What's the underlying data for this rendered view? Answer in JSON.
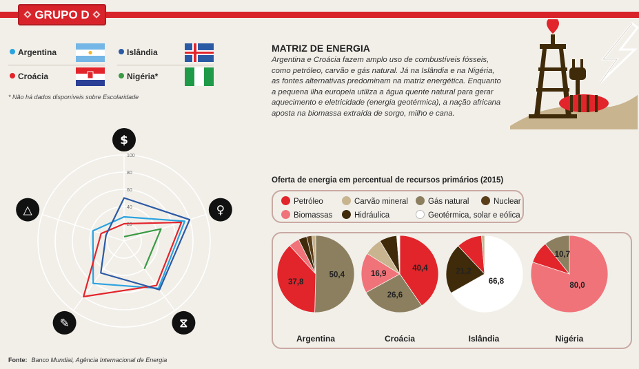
{
  "header": {
    "group": "GRUPO D"
  },
  "countries": [
    {
      "name": "Argentina",
      "color": "#2aa3df"
    },
    {
      "name": "Croácia",
      "color": "#e2242b"
    },
    {
      "name": "Islândia",
      "color": "#2b5aa5"
    },
    {
      "name": "Nigéria*",
      "color": "#3a9a45"
    }
  ],
  "note": "* Não há dados disponíveis sobre Escolaridade",
  "matrix": {
    "title": "MATRIZ DE ENERGIA",
    "text": "Argentina e Croácia fazem amplo uso de combustíveis fósseis, como petróleo, carvão e gás natural. Já na Islândia e na Nigéria, as fontes alternativas predominam na matriz energética. Enquanto a pequena ilha europeia utiliza a água quente natural para gerar aquecimento e eletricidade (energia geotérmica), a nação africana aposta na biomassa extraída de sorgo, milho e cana."
  },
  "source": {
    "label": "Fonte:",
    "text": "Banco Mundial, Agência Internacional de Energia"
  },
  "chart_data": [
    {
      "type": "radar",
      "axis_icons": [
        "dollar-icon",
        "person-icon",
        "hourglass-icon",
        "pencil-icon",
        "pyramid-icon"
      ],
      "ticks": [
        "20",
        "40",
        "60",
        "80",
        "100"
      ],
      "rlim": [
        0,
        100
      ],
      "series": [
        {
          "color": "#2aa3df",
          "values": [
            28,
            74,
            68,
            61,
            38
          ]
        },
        {
          "color": "#e2242b",
          "values": [
            20,
            70,
            64,
            80,
            28
          ]
        },
        {
          "color": "#2b5aa5",
          "values": [
            50,
            80,
            70,
            46,
            22
          ]
        },
        {
          "color": "#3a9a45",
          "values": [
            5,
            45,
            40,
            null,
            null
          ]
        }
      ]
    },
    {
      "type": "pie",
      "title": "Oferta de energia em percentual de recursos primários (2015)",
      "legend": [
        {
          "label": "Petróleo",
          "color": "#e2242b"
        },
        {
          "label": "Carvão mineral",
          "color": "#c8b48e"
        },
        {
          "label": "Gás natural",
          "color": "#8b7f5f"
        },
        {
          "label": "Nuclear",
          "color": "#5a3e1a"
        },
        {
          "label": "Biomassas",
          "color": "#f0737a"
        },
        {
          "label": "Hidráulica",
          "color": "#3f2a0a"
        },
        {
          "label": "Geotérmica, solar e eólica",
          "color": "#ffffff"
        }
      ],
      "pies": [
        {
          "name": "Argentina",
          "slices": [
            {
              "cat": "Gás natural",
              "value": 50.4,
              "label": "50,4"
            },
            {
              "cat": "Petróleo",
              "value": 37.8,
              "label": "37,8"
            },
            {
              "cat": "Biomassas",
              "value": 4.5,
              "label": ""
            },
            {
              "cat": "Hidráulica",
              "value": 3.5,
              "label": ""
            },
            {
              "cat": "Nuclear",
              "value": 2.2,
              "label": ""
            },
            {
              "cat": "Carvão mineral",
              "value": 1.6,
              "label": ""
            }
          ]
        },
        {
          "name": "Croácia",
          "slices": [
            {
              "cat": "Petróleo",
              "value": 40.4,
              "label": "40,4"
            },
            {
              "cat": "Gás natural",
              "value": 26.6,
              "label": "26,6"
            },
            {
              "cat": "Biomassas",
              "value": 16.9,
              "label": "16,9"
            },
            {
              "cat": "Carvão mineral",
              "value": 7.5,
              "label": ""
            },
            {
              "cat": "Hidráulica",
              "value": 7.3,
              "label": ""
            },
            {
              "cat": "Geotérmica, solar e eólica",
              "value": 1.3,
              "label": ""
            }
          ]
        },
        {
          "name": "Islândia",
          "slices": [
            {
              "cat": "Geotérmica, solar e eólica",
              "value": 66.8,
              "label": "66,8"
            },
            {
              "cat": "Hidráulica",
              "value": 21.2,
              "label": "21,2"
            },
            {
              "cat": "Petróleo",
              "value": 10.7,
              "label": ""
            },
            {
              "cat": "Carvão mineral",
              "value": 1.3,
              "label": ""
            }
          ]
        },
        {
          "name": "Nigéria",
          "slices": [
            {
              "cat": "Biomassas",
              "value": 80.0,
              "label": "80,0"
            },
            {
              "cat": "Petróleo",
              "value": 9.3,
              "label": ""
            },
            {
              "cat": "Gás natural",
              "value": 10.7,
              "label": "10,7"
            }
          ]
        }
      ]
    }
  ]
}
